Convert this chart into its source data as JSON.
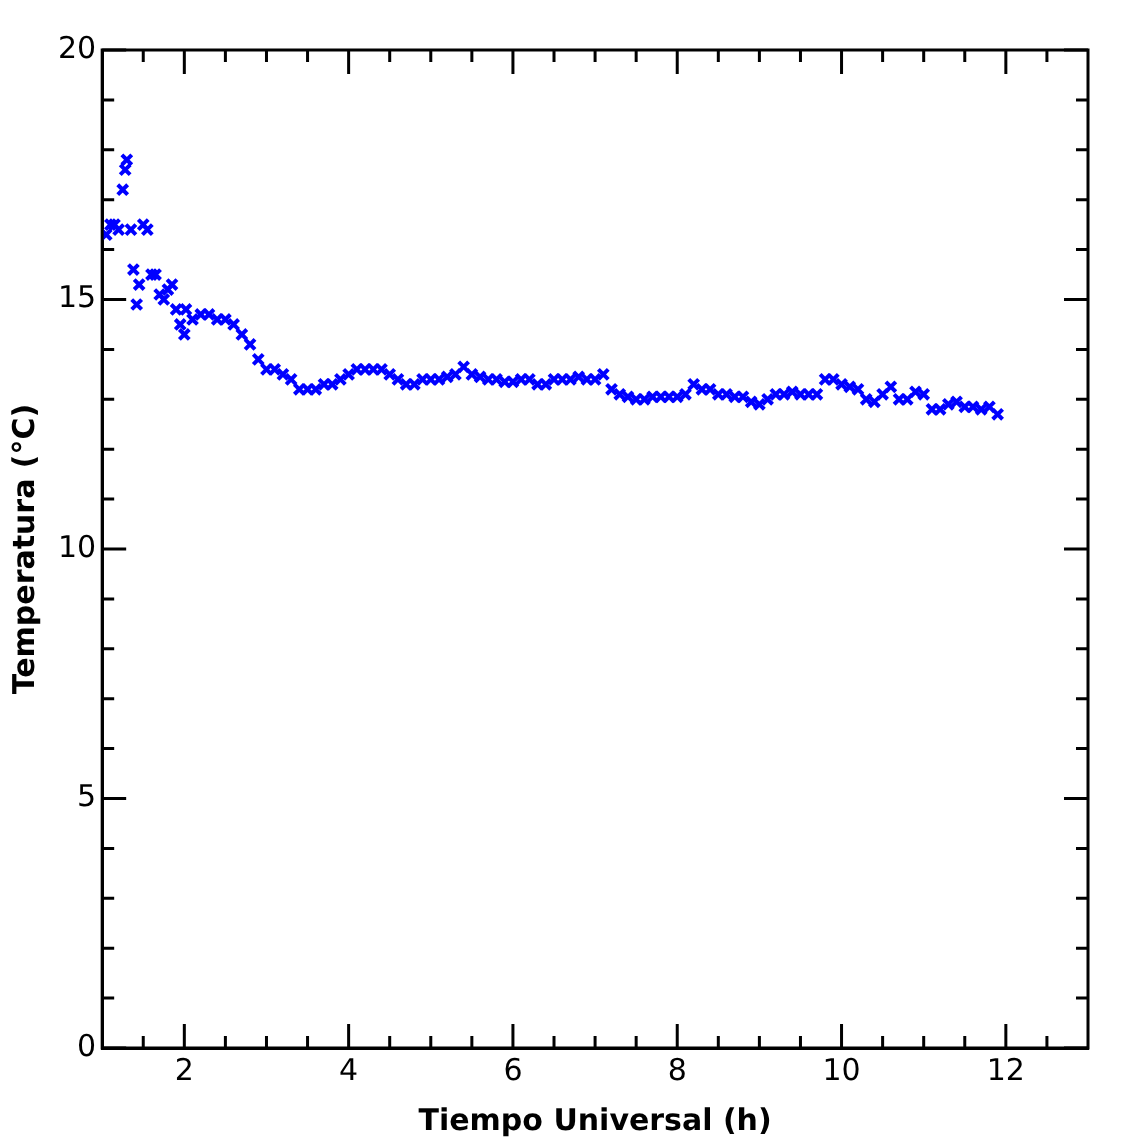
{
  "chart_data": {
    "type": "scatter",
    "xlabel": "Tiempo Universal (h)",
    "ylabel": "Temperatura (°C)",
    "marker": "cross",
    "grid": false,
    "legend": false,
    "xlim": [
      1,
      13
    ],
    "ylim": [
      0,
      20
    ],
    "xticks": [
      {
        "value": 1.5,
        "label": null
      },
      {
        "value": 2,
        "label": "2"
      },
      {
        "value": 2.5,
        "label": null
      },
      {
        "value": 3,
        "label": null
      },
      {
        "value": 3.5,
        "label": null
      },
      {
        "value": 4,
        "label": "4"
      },
      {
        "value": 4.5,
        "label": null
      },
      {
        "value": 5,
        "label": null
      },
      {
        "value": 5.5,
        "label": null
      },
      {
        "value": 6,
        "label": "6"
      },
      {
        "value": 6.5,
        "label": null
      },
      {
        "value": 7,
        "label": null
      },
      {
        "value": 7.5,
        "label": null
      },
      {
        "value": 8,
        "label": "8"
      },
      {
        "value": 8.5,
        "label": null
      },
      {
        "value": 9,
        "label": null
      },
      {
        "value": 9.5,
        "label": null
      },
      {
        "value": 10,
        "label": "10"
      },
      {
        "value": 10.5,
        "label": null
      },
      {
        "value": 11,
        "label": null
      },
      {
        "value": 11.5,
        "label": null
      },
      {
        "value": 12,
        "label": "12"
      },
      {
        "value": 12.5,
        "label": null
      }
    ],
    "yticks": [
      0,
      {
        "value": 1,
        "label": null
      },
      {
        "value": 2,
        "label": null
      },
      {
        "value": 3,
        "label": null
      },
      {
        "value": 4,
        "label": null
      },
      5,
      {
        "value": 6,
        "label": null
      },
      {
        "value": 7,
        "label": null
      },
      {
        "value": 8,
        "label": null
      },
      {
        "value": 9,
        "label": null
      },
      10,
      {
        "value": 11,
        "label": null
      },
      {
        "value": 12,
        "label": null
      },
      {
        "value": 13,
        "label": null
      },
      {
        "value": 14,
        "label": null
      },
      15,
      {
        "value": 16,
        "label": null
      },
      {
        "value": 17,
        "label": null
      },
      {
        "value": 18,
        "label": null
      },
      {
        "value": 19,
        "label": null
      },
      20
    ],
    "series": [
      {
        "color": "#0000ff",
        "x": [
          1.05,
          1.1,
          1.15,
          1.2,
          1.25,
          1.28,
          1.3,
          1.35,
          1.38,
          1.42,
          1.45,
          1.5,
          1.55,
          1.6,
          1.65,
          1.7,
          1.75,
          1.8,
          1.85,
          1.9,
          1.95,
          2.0,
          2.02,
          2.1,
          2.2,
          2.3,
          2.4,
          2.5,
          2.6,
          2.7,
          2.8,
          2.9,
          3.0,
          3.1,
          3.2,
          3.3,
          3.4,
          3.5,
          3.6,
          3.7,
          3.8,
          3.9,
          4.0,
          4.1,
          4.2,
          4.3,
          4.4,
          4.5,
          4.6,
          4.7,
          4.8,
          4.9,
          5.0,
          5.1,
          5.2,
          5.3,
          5.4,
          5.5,
          5.6,
          5.7,
          5.8,
          5.9,
          6.0,
          6.1,
          6.2,
          6.3,
          6.4,
          6.5,
          6.6,
          6.7,
          6.8,
          6.9,
          7.0,
          7.1,
          7.2,
          7.3,
          7.4,
          7.5,
          7.6,
          7.7,
          7.8,
          7.9,
          8.0,
          8.1,
          8.2,
          8.3,
          8.4,
          8.5,
          8.6,
          8.7,
          8.8,
          8.9,
          9.0,
          9.1,
          9.2,
          9.3,
          9.4,
          9.5,
          9.6,
          9.7,
          9.8,
          9.9,
          10.0,
          10.1,
          10.2,
          10.3,
          10.4,
          10.5,
          10.6,
          10.7,
          10.8,
          10.9,
          11.0,
          11.1,
          11.2,
          11.3,
          11.4,
          11.5,
          11.6,
          11.7,
          11.8,
          11.9
        ],
        "values": [
          16.3,
          16.5,
          16.5,
          16.4,
          17.2,
          17.6,
          17.8,
          16.4,
          15.6,
          14.9,
          15.3,
          16.5,
          16.4,
          15.5,
          15.5,
          15.1,
          15.0,
          15.2,
          15.3,
          14.8,
          14.5,
          14.3,
          14.8,
          14.6,
          14.7,
          14.7,
          14.6,
          14.6,
          14.5,
          14.3,
          14.1,
          13.8,
          13.6,
          13.6,
          13.5,
          13.4,
          13.2,
          13.2,
          13.2,
          13.3,
          13.3,
          13.4,
          13.5,
          13.6,
          13.6,
          13.6,
          13.6,
          13.5,
          13.4,
          13.3,
          13.3,
          13.4,
          13.4,
          13.4,
          13.45,
          13.5,
          13.65,
          13.5,
          13.45,
          13.4,
          13.4,
          13.35,
          13.35,
          13.4,
          13.4,
          13.3,
          13.3,
          13.4,
          13.4,
          13.4,
          13.45,
          13.4,
          13.4,
          13.5,
          13.2,
          13.1,
          13.05,
          13.0,
          13.0,
          13.05,
          13.05,
          13.05,
          13.05,
          13.1,
          13.3,
          13.2,
          13.2,
          13.1,
          13.1,
          13.05,
          13.05,
          12.95,
          12.9,
          13.0,
          13.1,
          13.1,
          13.15,
          13.1,
          13.1,
          13.1,
          13.4,
          13.4,
          13.3,
          13.25,
          13.2,
          13.0,
          12.95,
          13.1,
          13.25,
          13.0,
          13.0,
          13.15,
          13.1,
          12.8,
          12.8,
          12.9,
          12.95,
          12.85,
          12.85,
          12.8,
          12.85,
          12.7
        ]
      }
    ]
  }
}
